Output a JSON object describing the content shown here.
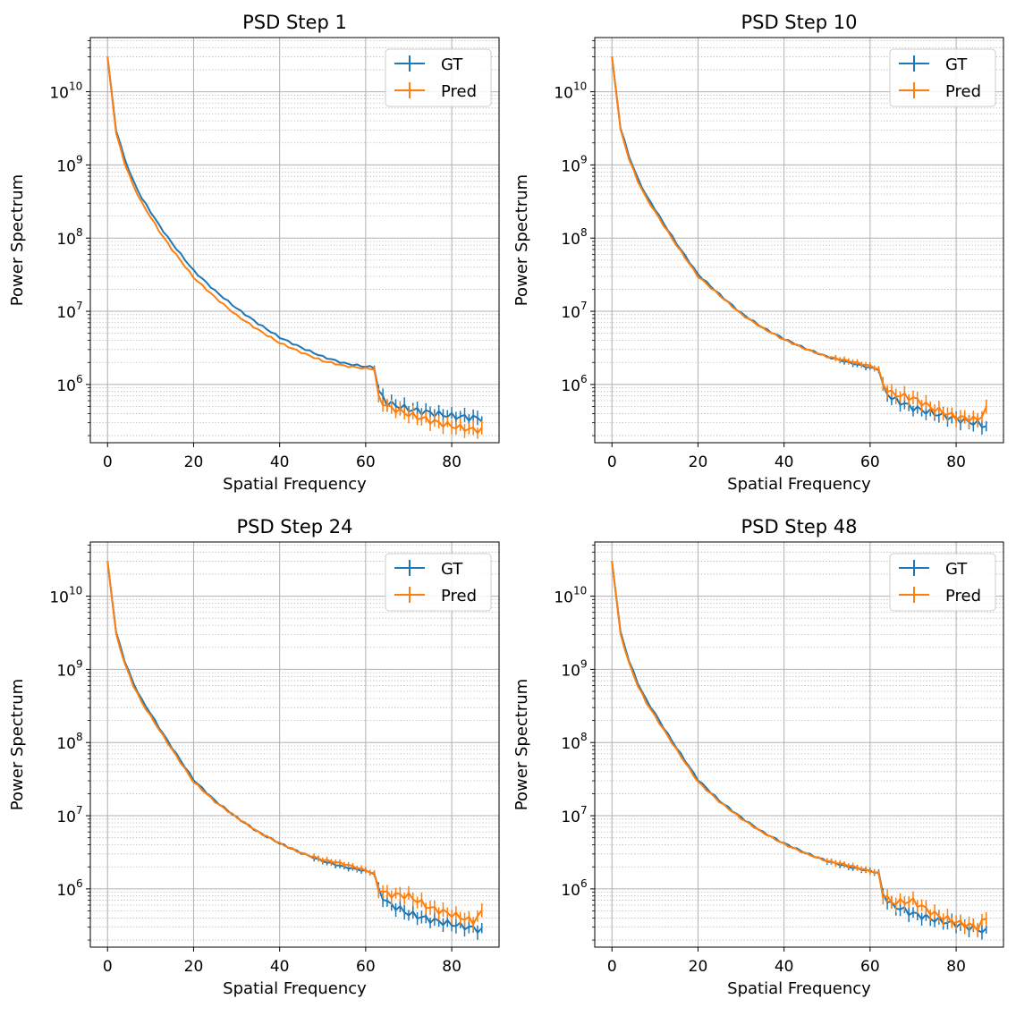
{
  "figure": {
    "series_colors": {
      "GT": "#1f77b4",
      "Pred": "#ff7f0e"
    }
  },
  "chart_data": [
    {
      "type": "line",
      "title": "PSD Step 1",
      "xlabel": "Spatial Frequency",
      "ylabel": "Power Spectrum",
      "yscale": "log",
      "xlim": [
        -4,
        91
      ],
      "ylim": [
        160000.0,
        55000000000.0
      ],
      "xticks": [
        0,
        20,
        40,
        60,
        80
      ],
      "xtick_labels": [
        "0",
        "20",
        "40",
        "60",
        "80"
      ],
      "yticks": [
        1000000.0,
        10000000.0,
        100000000.0,
        1000000000.0,
        10000000000.0
      ],
      "ytick_base": [
        "10",
        "10",
        "10",
        "10",
        "10"
      ],
      "ytick_exp": [
        "6",
        "7",
        "8",
        "9",
        "10"
      ],
      "grid": true,
      "legend": {
        "position": "top-right",
        "entries": [
          "GT",
          "Pred"
        ]
      },
      "x": [
        0,
        2,
        4,
        6,
        8,
        10,
        12,
        15,
        20,
        25,
        30,
        35,
        40,
        45,
        50,
        55,
        60,
        61,
        62,
        63,
        65,
        70,
        75,
        80,
        85,
        87
      ],
      "series": [
        {
          "name": "GT",
          "color": "#1f77b4",
          "errorbars_from_x": 62,
          "values": [
            30000000000.0,
            3000000000.0,
            1200000000.0,
            600000000.0,
            350000000.0,
            230000000.0,
            150000000.0,
            85000000.0,
            36000000.0,
            19000000.0,
            11000000.0,
            6800000.0,
            4400000.0,
            3200000.0,
            2400000.0,
            1950000.0,
            1750000.0,
            1750000.0,
            1700000.0,
            800000.0,
            560000.0,
            460000.0,
            410000.0,
            370000.0,
            350000.0,
            340000.0
          ]
        },
        {
          "name": "Pred",
          "color": "#ff7f0e",
          "errorbars_from_x": 62,
          "values": [
            30000000000.0,
            2700000000.0,
            1050000000.0,
            520000000.0,
            300000000.0,
            195000000.0,
            125000000.0,
            70000000.0,
            29000000.0,
            15500000.0,
            8800000.0,
            5600000.0,
            3700000.0,
            2750000.0,
            2100000.0,
            1800000.0,
            1650000.0,
            1650000.0,
            1600000.0,
            650000.0,
            500000.0,
            390000.0,
            320000.0,
            270000.0,
            240000.0,
            240000.0
          ]
        }
      ]
    },
    {
      "type": "line",
      "title": "PSD Step 10",
      "xlabel": "Spatial Frequency",
      "ylabel": "Power Spectrum",
      "yscale": "log",
      "xlim": [
        -4,
        91
      ],
      "ylim": [
        160000.0,
        55000000000.0
      ],
      "xticks": [
        0,
        20,
        40,
        60,
        80
      ],
      "xtick_labels": [
        "0",
        "20",
        "40",
        "60",
        "80"
      ],
      "yticks": [
        1000000.0,
        10000000.0,
        100000000.0,
        1000000000.0,
        10000000000.0
      ],
      "ytick_base": [
        "10",
        "10",
        "10",
        "10",
        "10"
      ],
      "ytick_exp": [
        "6",
        "7",
        "8",
        "9",
        "10"
      ],
      "grid": true,
      "legend": {
        "position": "top-right",
        "entries": [
          "GT",
          "Pred"
        ]
      },
      "x": [
        0,
        2,
        4,
        6,
        8,
        10,
        12,
        15,
        20,
        25,
        30,
        35,
        40,
        45,
        50,
        55,
        60,
        61,
        62,
        63,
        65,
        70,
        75,
        80,
        85,
        87
      ],
      "series": [
        {
          "name": "GT",
          "color": "#1f77b4",
          "errorbars_from_x": 52,
          "values": [
            30000000000.0,
            3200000000.0,
            1300000000.0,
            650000000.0,
            380000000.0,
            250000000.0,
            160000000.0,
            85000000.0,
            32000000.0,
            17000000.0,
            9500000.0,
            6000000.0,
            4200000.0,
            3100000.0,
            2400000.0,
            2000000.0,
            1700000.0,
            1650000.0,
            1600000.0,
            900000.0,
            650000.0,
            480000.0,
            400000.0,
            340000.0,
            290000.0,
            270000.0
          ]
        },
        {
          "name": "Pred",
          "color": "#ff7f0e",
          "errorbars_from_x": 52,
          "values": [
            30000000000.0,
            3000000000.0,
            1200000000.0,
            600000000.0,
            350000000.0,
            230000000.0,
            150000000.0,
            80000000.0,
            30000000.0,
            16500000.0,
            9200000.0,
            5900000.0,
            4100000.0,
            3050000.0,
            2400000.0,
            2100000.0,
            1800000.0,
            1700000.0,
            1600000.0,
            1000000.0,
            750000.0,
            650000.0,
            460000.0,
            360000.0,
            330000.0,
            450000.0
          ]
        }
      ]
    },
    {
      "type": "line",
      "title": "PSD Step 24",
      "xlabel": "Spatial Frequency",
      "ylabel": "Power Spectrum",
      "yscale": "log",
      "xlim": [
        -4,
        91
      ],
      "ylim": [
        160000.0,
        55000000000.0
      ],
      "xticks": [
        0,
        20,
        40,
        60,
        80
      ],
      "xtick_labels": [
        "0",
        "20",
        "40",
        "60",
        "80"
      ],
      "yticks": [
        1000000.0,
        10000000.0,
        100000000.0,
        1000000000.0,
        10000000000.0
      ],
      "ytick_base": [
        "10",
        "10",
        "10",
        "10",
        "10"
      ],
      "ytick_exp": [
        "6",
        "7",
        "8",
        "9",
        "10"
      ],
      "grid": true,
      "legend": {
        "position": "top-right",
        "entries": [
          "GT",
          "Pred"
        ]
      },
      "x": [
        0,
        2,
        4,
        6,
        8,
        10,
        12,
        15,
        20,
        25,
        30,
        35,
        40,
        45,
        50,
        55,
        60,
        61,
        62,
        63,
        65,
        70,
        75,
        80,
        85,
        87
      ],
      "series": [
        {
          "name": "GT",
          "color": "#1f77b4",
          "errorbars_from_x": 48,
          "values": [
            30000000000.0,
            3200000000.0,
            1300000000.0,
            650000000.0,
            380000000.0,
            250000000.0,
            160000000.0,
            85000000.0,
            31000000.0,
            16000000.0,
            9500000.0,
            6000000.0,
            4200000.0,
            3100000.0,
            2400000.0,
            2000000.0,
            1750000.0,
            1700000.0,
            1600000.0,
            950000.0,
            650000.0,
            460000.0,
            380000.0,
            330000.0,
            290000.0,
            270000.0
          ]
        },
        {
          "name": "Pred",
          "color": "#ff7f0e",
          "errorbars_from_x": 48,
          "values": [
            30000000000.0,
            3000000000.0,
            1200000000.0,
            600000000.0,
            350000000.0,
            230000000.0,
            150000000.0,
            80000000.0,
            29000000.0,
            15500000.0,
            9500000.0,
            6000000.0,
            4200000.0,
            3100000.0,
            2500000.0,
            2200000.0,
            1800000.0,
            1700000.0,
            1600000.0,
            1000000.0,
            850000.0,
            800000.0,
            550000.0,
            450000.0,
            360000.0,
            480000.0
          ]
        }
      ]
    },
    {
      "type": "line",
      "title": "PSD Step 48",
      "xlabel": "Spatial Frequency",
      "ylabel": "Power Spectrum",
      "yscale": "log",
      "xlim": [
        -4,
        91
      ],
      "ylim": [
        160000.0,
        55000000000.0
      ],
      "xticks": [
        0,
        20,
        40,
        60,
        80
      ],
      "xtick_labels": [
        "0",
        "20",
        "40",
        "60",
        "80"
      ],
      "yticks": [
        1000000.0,
        10000000.0,
        100000000.0,
        1000000000.0,
        10000000000.0
      ],
      "ytick_base": [
        "10",
        "10",
        "10",
        "10",
        "10"
      ],
      "ytick_exp": [
        "6",
        "7",
        "8",
        "9",
        "10"
      ],
      "grid": true,
      "legend": {
        "position": "top-right",
        "entries": [
          "GT",
          "Pred"
        ]
      },
      "x": [
        0,
        2,
        4,
        6,
        8,
        10,
        12,
        15,
        20,
        25,
        30,
        35,
        40,
        45,
        50,
        55,
        60,
        61,
        62,
        63,
        65,
        70,
        75,
        80,
        85,
        87
      ],
      "series": [
        {
          "name": "GT",
          "color": "#1f77b4",
          "errorbars_from_x": 50,
          "values": [
            30000000000.0,
            3200000000.0,
            1300000000.0,
            650000000.0,
            380000000.0,
            250000000.0,
            160000000.0,
            85000000.0,
            31000000.0,
            16000000.0,
            9500000.0,
            6000000.0,
            4200000.0,
            3100000.0,
            2400000.0,
            2000000.0,
            1750000.0,
            1700000.0,
            1650000.0,
            850000.0,
            600000.0,
            460000.0,
            380000.0,
            330000.0,
            280000.0,
            260000.0
          ]
        },
        {
          "name": "Pred",
          "color": "#ff7f0e",
          "errorbars_from_x": 50,
          "values": [
            30000000000.0,
            3000000000.0,
            1200000000.0,
            600000000.0,
            350000000.0,
            230000000.0,
            150000000.0,
            80000000.0,
            29000000.0,
            15500000.0,
            9200000.0,
            5900000.0,
            4100000.0,
            3050000.0,
            2400000.0,
            2100000.0,
            1750000.0,
            1700000.0,
            1600000.0,
            850000.0,
            650000.0,
            680000.0,
            450000.0,
            350000.0,
            300000.0,
            400000.0
          ]
        }
      ]
    }
  ]
}
